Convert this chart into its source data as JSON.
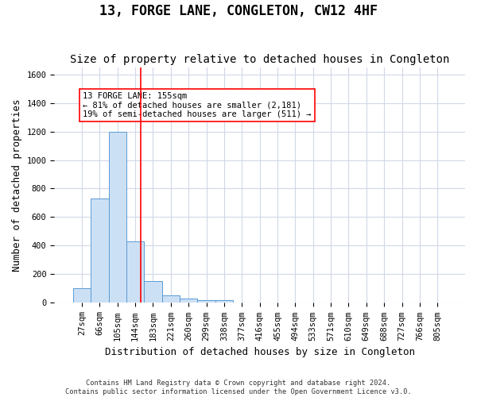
{
  "title": "13, FORGE LANE, CONGLETON, CW12 4HF",
  "subtitle": "Size of property relative to detached houses in Congleton",
  "xlabel": "Distribution of detached houses by size in Congleton",
  "ylabel": "Number of detached properties",
  "bin_labels": [
    "27sqm",
    "66sqm",
    "105sqm",
    "144sqm",
    "183sqm",
    "221sqm",
    "260sqm",
    "299sqm",
    "338sqm",
    "377sqm",
    "416sqm",
    "455sqm",
    "494sqm",
    "533sqm",
    "571sqm",
    "610sqm",
    "649sqm",
    "688sqm",
    "727sqm",
    "766sqm",
    "805sqm"
  ],
  "bar_values": [
    100,
    730,
    1200,
    430,
    150,
    50,
    30,
    20,
    20,
    0,
    0,
    0,
    0,
    0,
    0,
    0,
    0,
    0,
    0,
    0,
    0
  ],
  "bar_color": "#cce0f5",
  "bar_edge_color": "#5b9bd5",
  "ylim": [
    0,
    1650
  ],
  "yticks": [
    0,
    200,
    400,
    600,
    800,
    1000,
    1200,
    1400,
    1600
  ],
  "red_line_x": 3.29,
  "annotation_line1": "13 FORGE LANE: 155sqm",
  "annotation_line2": "← 81% of detached houses are smaller (2,181)",
  "annotation_line3": "19% of semi-detached houses are larger (511) →",
  "footer_line1": "Contains HM Land Registry data © Crown copyright and database right 2024.",
  "footer_line2": "Contains public sector information licensed under the Open Government Licence v3.0.",
  "background_color": "#ffffff",
  "grid_color": "#d0d8e8",
  "title_fontsize": 12,
  "subtitle_fontsize": 10,
  "axis_fontsize": 9,
  "tick_fontsize": 7.5
}
